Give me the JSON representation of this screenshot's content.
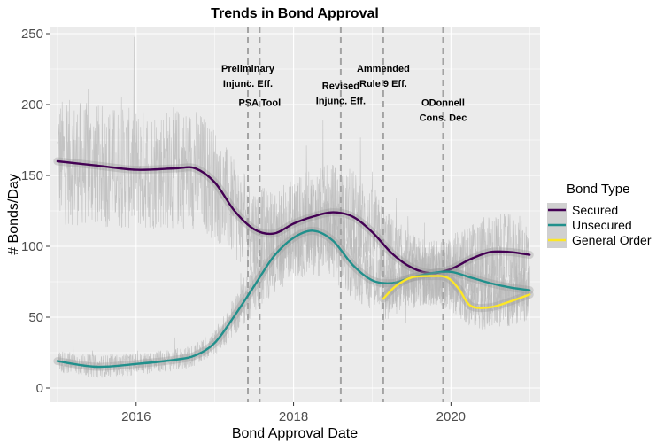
{
  "chart_data": {
    "type": "line",
    "title": "Trends in Bond Approval",
    "xlabel": "Bond Approval Date",
    "ylabel": "# Bonds/Day",
    "xlim": [
      "2015-01-01",
      "2021-01-31"
    ],
    "ylim": [
      -10,
      255
    ],
    "x_ticks": [
      2016,
      2018,
      2020
    ],
    "x_tick_labels": [
      "2016",
      "2018",
      "2020"
    ],
    "y_ticks": [
      0,
      50,
      100,
      150,
      200,
      250
    ],
    "y_tick_labels": [
      "0",
      "50",
      "100",
      "150",
      "200",
      "250"
    ],
    "grid": true,
    "legend": {
      "title": "Bond Type",
      "position": "right"
    },
    "series": [
      {
        "name": "Secured",
        "color": "#440154",
        "x": [
          2015.0,
          2015.5,
          2016.0,
          2016.5,
          2016.75,
          2017.0,
          2017.25,
          2017.5,
          2017.75,
          2018.0,
          2018.25,
          2018.5,
          2018.75,
          2019.0,
          2019.25,
          2019.5,
          2019.75,
          2020.0,
          2020.25,
          2020.5,
          2020.75,
          2021.0
        ],
        "y": [
          160,
          157,
          154,
          155,
          155,
          145,
          125,
          112,
          109,
          116,
          121,
          124,
          121,
          110,
          95,
          85,
          81,
          84,
          91,
          96,
          96,
          94
        ]
      },
      {
        "name": "Unsecured",
        "color": "#21908C",
        "x": [
          2015.0,
          2015.5,
          2016.0,
          2016.5,
          2016.75,
          2017.0,
          2017.25,
          2017.5,
          2017.75,
          2018.0,
          2018.25,
          2018.5,
          2018.75,
          2019.0,
          2019.25,
          2019.5,
          2019.75,
          2020.0,
          2020.25,
          2020.5,
          2020.75,
          2021.0
        ],
        "y": [
          19,
          15,
          17,
          20,
          23,
          32,
          51,
          72,
          93,
          106,
          111,
          104,
          87,
          76,
          74,
          78,
          81,
          82,
          78,
          74,
          71,
          69
        ]
      },
      {
        "name": "General Order",
        "color": "#FDE725",
        "x": [
          2019.14,
          2019.3,
          2019.5,
          2019.75,
          2019.95,
          2020.1,
          2020.25,
          2020.5,
          2020.75,
          2021.0
        ],
        "y": [
          63,
          72,
          78,
          79,
          78,
          70,
          58,
          57,
          61,
          66
        ]
      }
    ],
    "events": [
      {
        "label_lines": [
          "Preliminary",
          "Injunc. Eff."
        ],
        "x": 2017.42,
        "y_text": 223
      },
      {
        "label_lines": [
          "PSA Tool"
        ],
        "x": 2017.57,
        "y_text": 199
      },
      {
        "label_lines": [
          "Revised",
          "Injunc. Eff."
        ],
        "x": 2018.6,
        "y_text": 211
      },
      {
        "label_lines": [
          "Ammended",
          "Rule 9 Eff."
        ],
        "x": 2019.14,
        "y_text": 223
      },
      {
        "label_lines": [
          "ODonnell",
          "Cons. Dec"
        ],
        "x": 2019.9,
        "y_text": 199
      }
    ]
  }
}
